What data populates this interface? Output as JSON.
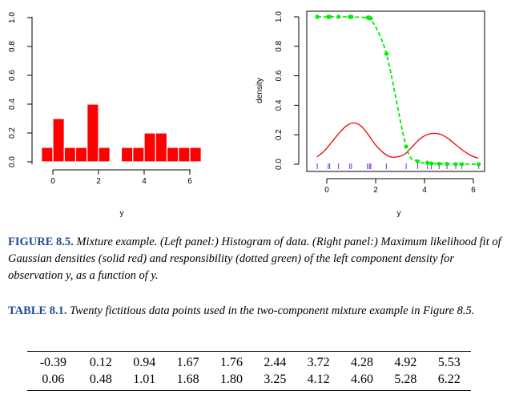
{
  "chart_data": [
    {
      "type": "bar",
      "panel": "left",
      "xlabel": "y",
      "ylabel": "",
      "xlim": [
        -0.5,
        6.5
      ],
      "ylim": [
        0,
        1.0
      ],
      "x_ticks": [
        "0",
        "2",
        "4",
        "6"
      ],
      "y_ticks": [
        "0.0",
        "0.2",
        "0.4",
        "0.6",
        "0.8",
        "1.0"
      ],
      "bin_width": 0.5,
      "bin_starts": [
        -0.5,
        0.0,
        0.5,
        1.0,
        1.5,
        2.0,
        2.5,
        3.0,
        3.5,
        4.0,
        4.5,
        5.0,
        5.5,
        6.0
      ],
      "values": [
        0.1,
        0.3,
        0.1,
        0.1,
        0.4,
        0.1,
        0.0,
        0.1,
        0.1,
        0.2,
        0.2,
        0.1,
        0.1,
        0.1
      ],
      "color": "#ff0000"
    },
    {
      "type": "line",
      "panel": "right",
      "xlabel": "y",
      "ylabel": "density",
      "xlim": [
        -0.5,
        6.5
      ],
      "ylim": [
        0,
        1.0
      ],
      "x_ticks": [
        "0",
        "2",
        "4",
        "6"
      ],
      "y_ticks": [
        "0.0",
        "0.2",
        "0.4",
        "0.6",
        "0.8",
        "1.0"
      ],
      "mixture_density": {
        "color": "#ee0000",
        "style": "solid",
        "x": [
          -0.4,
          -0.1,
          0.2,
          0.5,
          0.8,
          1.1,
          1.4,
          1.7,
          2.0,
          2.3,
          2.6,
          2.9,
          3.2,
          3.5,
          3.8,
          4.1,
          4.4,
          4.7,
          5.0,
          5.3,
          5.6,
          5.9,
          6.2
        ],
        "y": [
          0.05,
          0.09,
          0.15,
          0.21,
          0.26,
          0.28,
          0.26,
          0.2,
          0.13,
          0.08,
          0.05,
          0.05,
          0.07,
          0.12,
          0.17,
          0.2,
          0.21,
          0.2,
          0.17,
          0.13,
          0.09,
          0.06,
          0.04
        ]
      },
      "responsibility": {
        "color": "#00ee00",
        "style": "dashed",
        "x": [
          -0.39,
          0.06,
          0.12,
          0.48,
          0.94,
          1.01,
          1.67,
          1.68,
          1.76,
          1.8,
          2.44,
          3.25,
          3.72,
          4.12,
          4.28,
          4.6,
          4.92,
          5.28,
          5.53,
          6.22
        ],
        "y": [
          1.0,
          1.0,
          1.0,
          1.0,
          1.0,
          1.0,
          0.995,
          0.995,
          0.99,
          0.99,
          0.75,
          0.12,
          0.02,
          0.01,
          0.005,
          0.003,
          0.002,
          0.001,
          0.001,
          0.0
        ]
      },
      "rug": {
        "color": "#7b2be2",
        "x": [
          -0.39,
          0.06,
          0.12,
          0.48,
          0.94,
          1.01,
          1.67,
          1.68,
          1.76,
          1.8,
          2.44,
          3.25,
          3.72,
          4.12,
          4.28,
          4.6,
          4.92,
          5.28,
          5.53,
          6.22
        ]
      }
    }
  ],
  "figure_caption": {
    "label": "FIGURE 8.5.",
    "text": "Mixture example. (Left panel:) Histogram of data. (Right panel:) Maximum likelihood fit of Gaussian densities (solid red) and responsibility (dotted green) of the left component density for observation y, as a function of y."
  },
  "table_caption": {
    "label": "TABLE 8.1.",
    "text": "Twenty fictitious data points used in the two-component mixture example in Figure 8.5."
  },
  "table_rows": [
    [
      "-0.39",
      "0.12",
      "0.94",
      "1.67",
      "1.76",
      "2.44",
      "3.72",
      "4.28",
      "4.92",
      "5.53"
    ],
    [
      "0.06",
      "0.48",
      "1.01",
      "1.68",
      "1.80",
      "3.25",
      "4.12",
      "4.60",
      "5.28",
      "6.22"
    ]
  ]
}
